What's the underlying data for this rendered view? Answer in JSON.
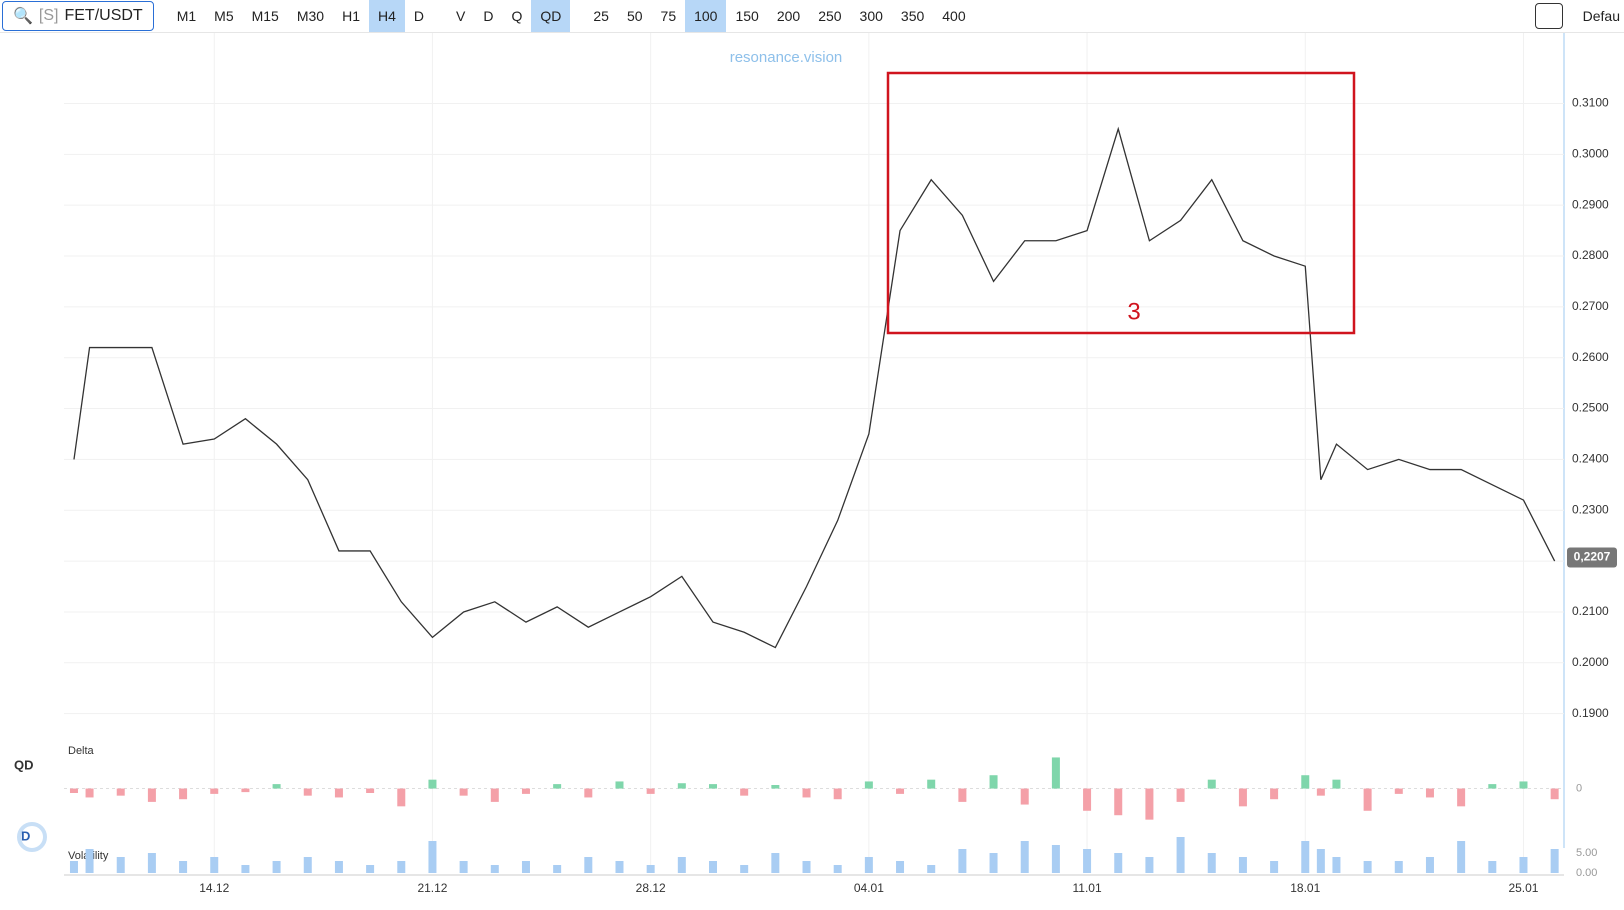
{
  "toolbar": {
    "symbol_prefix": "[S]",
    "symbol": "FET/USDT",
    "timeframes": [
      "M1",
      "M5",
      "M15",
      "M30",
      "H1",
      "H4",
      "D"
    ],
    "active_timeframe": "H4",
    "modes": [
      "V",
      "D",
      "Q",
      "QD"
    ],
    "active_mode": "QD",
    "scales": [
      "25",
      "50",
      "75",
      "100",
      "150",
      "200",
      "250",
      "300",
      "350",
      "400"
    ],
    "active_scale": "100",
    "right_label": "Defau"
  },
  "watermark": "resonance.vision",
  "price_chart": {
    "type": "line",
    "color": "#333333",
    "x": [
      -4.5,
      -4,
      -3,
      -2,
      -1,
      0,
      1,
      2,
      3,
      4,
      5,
      6,
      7,
      8,
      9,
      10,
      11,
      12,
      13,
      14,
      15,
      16,
      17,
      18,
      19,
      20,
      21,
      22,
      23,
      24,
      25,
      26,
      27,
      28,
      29,
      30,
      31,
      32,
      33,
      34,
      35,
      35.5,
      36,
      37,
      38,
      39,
      40,
      41,
      42,
      43
    ],
    "values": [
      0.24,
      0.262,
      0.262,
      0.262,
      0.243,
      0.244,
      0.248,
      0.243,
      0.236,
      0.222,
      0.222,
      0.212,
      0.205,
      0.21,
      0.212,
      0.208,
      0.211,
      0.207,
      0.21,
      0.213,
      0.217,
      0.208,
      0.206,
      0.203,
      0.215,
      0.228,
      0.245,
      0.285,
      0.295,
      0.288,
      0.275,
      0.283,
      0.283,
      0.285,
      0.305,
      0.283,
      0.287,
      0.295,
      0.283,
      0.28,
      0.278,
      0.236,
      0.243,
      0.238,
      0.24,
      0.238,
      0.238,
      0.235,
      0.232,
      0.22
    ],
    "xlim": [
      -4.82,
      43.3
    ],
    "ylim": [
      0.1858,
      0.3215
    ],
    "xticks": [
      {
        "value": 0,
        "label": "14.12"
      },
      {
        "value": 7,
        "label": "21.12"
      },
      {
        "value": 14,
        "label": "28.12"
      },
      {
        "value": 21,
        "label": "04.01"
      },
      {
        "value": 28,
        "label": "11.01"
      },
      {
        "value": 35,
        "label": "18.01"
      },
      {
        "value": 42,
        "label": "25.01"
      }
    ],
    "yticks": [
      {
        "value": 0.31,
        "label": "0.3100"
      },
      {
        "value": 0.3,
        "label": "0.3000"
      },
      {
        "value": 0.29,
        "label": "0.2900"
      },
      {
        "value": 0.28,
        "label": "0.2800"
      },
      {
        "value": 0.27,
        "label": "0.2700"
      },
      {
        "value": 0.26,
        "label": "0.2600"
      },
      {
        "value": 0.25,
        "label": "0.2500"
      },
      {
        "value": 0.24,
        "label": "0.2400"
      },
      {
        "value": 0.23,
        "label": "0.2300"
      },
      {
        "value": 0.22,
        "label": "0.2200"
      },
      {
        "value": 0.21,
        "label": "0.2100"
      },
      {
        "value": 0.2,
        "label": "0.2000"
      },
      {
        "value": 0.19,
        "label": "0.1900"
      }
    ],
    "last_price": {
      "value": 0.2207,
      "label": "0,2207"
    },
    "annotation": "3",
    "grid": true
  },
  "delta_panel": {
    "label": "Delta",
    "side_label": "QD",
    "ylim": [
      -50,
      40
    ],
    "yticks": [
      0
    ],
    "up_color": "#7fd6ab",
    "down_color": "#f4a0a8",
    "values": [
      -5,
      -10,
      -8,
      -15,
      -12,
      -6,
      -4,
      5,
      -8,
      -10,
      -5,
      -20,
      10,
      -8,
      -15,
      -6,
      5,
      -10,
      8,
      -6,
      6,
      5,
      -8,
      4,
      -10,
      -12,
      8,
      -6,
      10,
      -15,
      15,
      -18,
      35,
      -25,
      -30,
      -35,
      -15,
      10,
      -20,
      -12,
      15,
      -8,
      10,
      -25,
      -6,
      -10,
      -20,
      5,
      8,
      -12
    ]
  },
  "volatility_panel": {
    "label": "Volatility",
    "side_label": "D",
    "ylim": [
      0,
      10
    ],
    "yticks": [
      {
        "value": 5,
        "label": "5.00"
      },
      {
        "value": 0,
        "label": "0.00"
      }
    ],
    "color": "#a9cdf3",
    "values": [
      3,
      6,
      4,
      5,
      3,
      4,
      2,
      3,
      4,
      3,
      2,
      3,
      8,
      3,
      2,
      3,
      2,
      4,
      3,
      2,
      4,
      3,
      2,
      5,
      3,
      2,
      4,
      3,
      2,
      6,
      5,
      8,
      7,
      6,
      5,
      4,
      9,
      5,
      4,
      3,
      8,
      6,
      4,
      3,
      3,
      4,
      8,
      3,
      4,
      6
    ]
  }
}
